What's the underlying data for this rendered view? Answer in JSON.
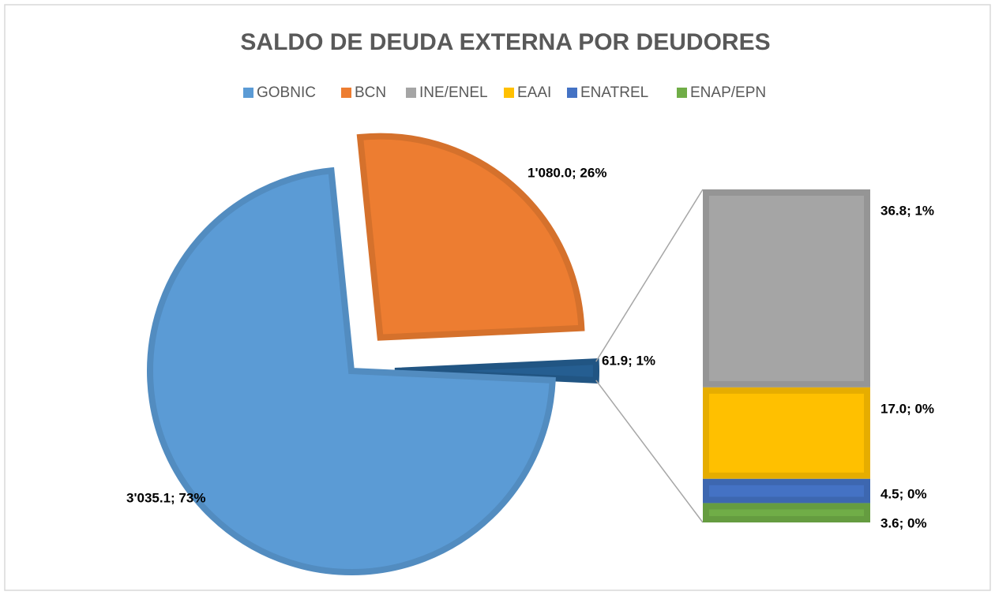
{
  "chart_data": {
    "type": "pie",
    "title": "SALDO DE DEUDA EXTERNA POR DEUDORES",
    "categories": [
      "GOBNIC",
      "BCN",
      null
    ],
    "values": [
      3035.1,
      1080.0,
      61.9
    ],
    "value_labels": [
      "3'035.1; 73%",
      "1'080.0; 26%",
      "61.9; 1%"
    ],
    "colors": [
      "#5b9bd5",
      "#ed7d31",
      "#255e91"
    ],
    "bar": {
      "categories": [
        "INE/ENEL",
        "EAAI",
        "ENATREL",
        "ENAP/EPN"
      ],
      "values": [
        36.8,
        17.0,
        4.5,
        3.6
      ],
      "value_labels": [
        "36.8; 1%",
        "17.0; 0%",
        "4.5; 0%",
        "3.6; 0%"
      ],
      "colors": [
        "#a5a5a5",
        "#ffc000",
        "#4472c4",
        "#70ad47"
      ]
    }
  }
}
